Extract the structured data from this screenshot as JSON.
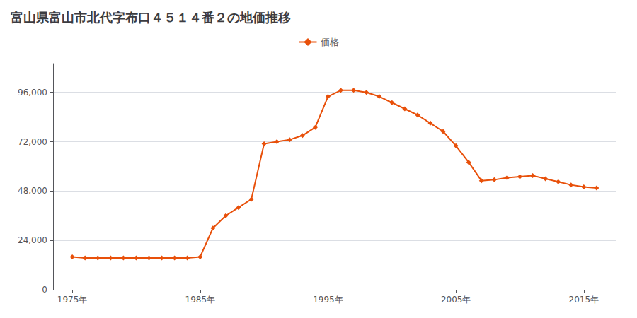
{
  "chart_data": {
    "type": "line",
    "title": "富山県富山市北代字布口４５１４番２の地価推移",
    "x": [
      1975,
      1976,
      1977,
      1978,
      1979,
      1980,
      1981,
      1982,
      1983,
      1984,
      1985,
      1986,
      1987,
      1988,
      1989,
      1990,
      1991,
      1992,
      1993,
      1994,
      1995,
      1996,
      1997,
      1998,
      1999,
      2000,
      2001,
      2002,
      2003,
      2004,
      2005,
      2006,
      2007,
      2008,
      2009,
      2010,
      2011,
      2012,
      2013,
      2014,
      2015,
      2016
    ],
    "series": [
      {
        "name": "価格",
        "color": "#e8500a",
        "marker": "diamond",
        "values": [
          16000,
          15500,
          15500,
          15500,
          15500,
          15500,
          15500,
          15500,
          15500,
          15500,
          16000,
          30000,
          36000,
          40000,
          44000,
          71000,
          72000,
          73000,
          75000,
          79000,
          94000,
          97000,
          97000,
          96000,
          94000,
          91000,
          88000,
          85000,
          81000,
          77000,
          70000,
          62000,
          53000,
          53500,
          54500,
          55000,
          55500,
          54000,
          52500,
          51000,
          50000,
          49500
        ]
      }
    ],
    "xlim": [
      1973.5,
      2017.5
    ],
    "xticks": [
      {
        "value": 1975,
        "label": "1975年"
      },
      {
        "value": 1985,
        "label": "1985年"
      },
      {
        "value": 1995,
        "label": "1995年"
      },
      {
        "value": 2005,
        "label": "2005年"
      },
      {
        "value": 2015,
        "label": "2015年"
      }
    ],
    "ylim": [
      0,
      110000
    ],
    "yticks": [
      0,
      {
        "value": 24000,
        "label": "24,000"
      },
      {
        "value": 48000,
        "label": "48,000"
      },
      {
        "value": 72000,
        "label": "72,000"
      },
      {
        "value": 96000,
        "label": "96,000"
      }
    ],
    "grid": true,
    "legend": "top"
  }
}
